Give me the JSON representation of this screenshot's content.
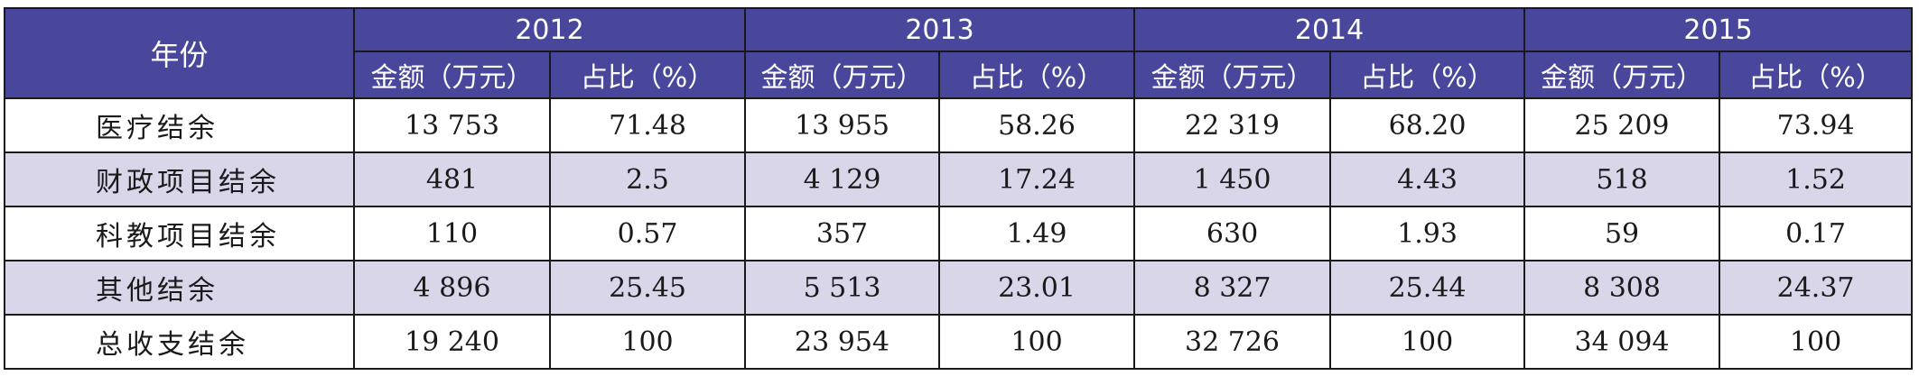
{
  "table": {
    "corner_label": "年份",
    "years": [
      "2012",
      "2013",
      "2014",
      "2015"
    ],
    "sub_headers": [
      "金额（万元）",
      "占比（%）"
    ],
    "rows": [
      {
        "label": "医疗结余",
        "values": [
          "13 753",
          "71.48",
          "13 955",
          "58.26",
          "22 319",
          "68.20",
          "25 209",
          "73.94"
        ]
      },
      {
        "label": "财政项目结余",
        "values": [
          "481",
          "2.5",
          "4 129",
          "17.24",
          "1 450",
          "4.43",
          "518",
          "1.52"
        ]
      },
      {
        "label": "科教项目结余",
        "values": [
          "110",
          "0.57",
          "357",
          "1.49",
          "630",
          "1.93",
          "59",
          "0.17"
        ]
      },
      {
        "label": "其他结余",
        "values": [
          "4 896",
          "25.45",
          "5 513",
          "23.01",
          "8 327",
          "25.44",
          "8 308",
          "24.37"
        ]
      },
      {
        "label": "总收支结余",
        "values": [
          "19 240",
          "100",
          "23 954",
          "100",
          "32 726",
          "100",
          "34 094",
          "100"
        ]
      }
    ]
  },
  "colors": {
    "header_bg": "#48479b",
    "header_text": "#ffffff",
    "shaded_row_bg": "#d9d6ea",
    "plain_row_bg": "#ffffff",
    "border": "#1a1a1a"
  }
}
